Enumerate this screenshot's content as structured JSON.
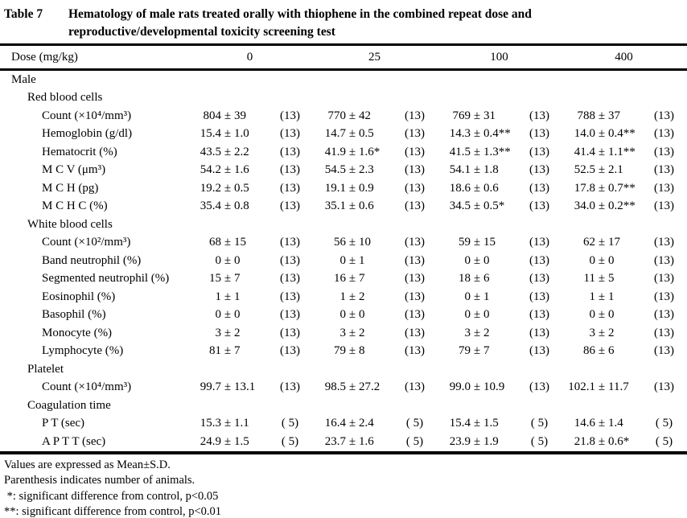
{
  "title": {
    "label": "Table 7",
    "line1": "Hematology of male rats treated orally with thiophene in the combined repeat dose and",
    "line2": "reproductive/developmental toxicity screening test"
  },
  "table": {
    "dose_label": "Dose (mg/kg)",
    "doses": [
      "0",
      "25",
      "100",
      "400"
    ],
    "pm": "±",
    "rows": [
      {
        "kind": "section",
        "level": 0,
        "label": "Male"
      },
      {
        "kind": "section",
        "level": 1,
        "label": "Red blood cells"
      },
      {
        "kind": "data",
        "level": 2,
        "label": "Count (×10⁴/mm³)",
        "values": [
          [
            "804",
            "39",
            "(13)"
          ],
          [
            "770",
            "42",
            "(13)"
          ],
          [
            "769",
            "31",
            "(13)"
          ],
          [
            "788",
            "37",
            "(13)"
          ]
        ]
      },
      {
        "kind": "data",
        "level": 2,
        "label": "Hemoglobin (g/dl)",
        "values": [
          [
            "15.4",
            "1.0",
            "(13)"
          ],
          [
            "14.7",
            "0.5",
            "(13)"
          ],
          [
            "14.3",
            "0.4**",
            "(13)"
          ],
          [
            "14.0",
            "0.4**",
            "(13)"
          ]
        ]
      },
      {
        "kind": "data",
        "level": 2,
        "label": "Hematocrit (%)",
        "values": [
          [
            "43.5",
            "2.2",
            "(13)"
          ],
          [
            "41.9",
            "1.6*",
            "(13)"
          ],
          [
            "41.5",
            "1.3**",
            "(13)"
          ],
          [
            "41.4",
            "1.1**",
            "(13)"
          ]
        ]
      },
      {
        "kind": "data",
        "level": 2,
        "label": "M C V (μm³)",
        "values": [
          [
            "54.2",
            "1.6",
            "(13)"
          ],
          [
            "54.5",
            "2.3",
            "(13)"
          ],
          [
            "54.1",
            "1.8",
            "(13)"
          ],
          [
            "52.5",
            "2.1",
            "(13)"
          ]
        ]
      },
      {
        "kind": "data",
        "level": 2,
        "label": "M C H (pg)",
        "values": [
          [
            "19.2",
            "0.5",
            "(13)"
          ],
          [
            "19.1",
            "0.9",
            "(13)"
          ],
          [
            "18.6",
            "0.6",
            "(13)"
          ],
          [
            "17.8",
            "0.7**",
            "(13)"
          ]
        ]
      },
      {
        "kind": "data",
        "level": 2,
        "label": "M C H C (%)",
        "values": [
          [
            "35.4",
            "0.8",
            "(13)"
          ],
          [
            "35.1",
            "0.6",
            "(13)"
          ],
          [
            "34.5",
            "0.5*",
            "(13)"
          ],
          [
            "34.0",
            "0.2**",
            "(13)"
          ]
        ]
      },
      {
        "kind": "section",
        "level": 1,
        "label": "White blood cells"
      },
      {
        "kind": "data",
        "level": 2,
        "label": "Count (×10²/mm³)",
        "values": [
          [
            "68",
            "15",
            "(13)"
          ],
          [
            "56",
            "10",
            "(13)"
          ],
          [
            "59",
            "15",
            "(13)"
          ],
          [
            "62",
            "17",
            "(13)"
          ]
        ]
      },
      {
        "kind": "data",
        "level": 2,
        "label": "Band neutrophil (%)",
        "values": [
          [
            "0",
            "0",
            "(13)"
          ],
          [
            "0",
            "1",
            "(13)"
          ],
          [
            "0",
            "0",
            "(13)"
          ],
          [
            "0",
            "0",
            "(13)"
          ]
        ]
      },
      {
        "kind": "data",
        "level": 2,
        "label": "Segmented neutrophil (%)",
        "values": [
          [
            "15",
            "7",
            "(13)"
          ],
          [
            "16",
            "7",
            "(13)"
          ],
          [
            "18",
            "6",
            "(13)"
          ],
          [
            "11",
            "5",
            "(13)"
          ]
        ]
      },
      {
        "kind": "data",
        "level": 2,
        "label": "Eosinophil (%)",
        "values": [
          [
            "1",
            "1",
            "(13)"
          ],
          [
            "1",
            "2",
            "(13)"
          ],
          [
            "0",
            "1",
            "(13)"
          ],
          [
            "1",
            "1",
            "(13)"
          ]
        ]
      },
      {
        "kind": "data",
        "level": 2,
        "label": "Basophil (%)",
        "values": [
          [
            "0",
            "0",
            "(13)"
          ],
          [
            "0",
            "0",
            "(13)"
          ],
          [
            "0",
            "0",
            "(13)"
          ],
          [
            "0",
            "0",
            "(13)"
          ]
        ]
      },
      {
        "kind": "data",
        "level": 2,
        "label": "Monocyte (%)",
        "values": [
          [
            "3",
            "2",
            "(13)"
          ],
          [
            "3",
            "2",
            "(13)"
          ],
          [
            "3",
            "2",
            "(13)"
          ],
          [
            "3",
            "2",
            "(13)"
          ]
        ]
      },
      {
        "kind": "data",
        "level": 2,
        "label": "Lymphocyte (%)",
        "values": [
          [
            "81",
            "7",
            "(13)"
          ],
          [
            "79",
            "8",
            "(13)"
          ],
          [
            "79",
            "7",
            "(13)"
          ],
          [
            "86",
            "6",
            "(13)"
          ]
        ]
      },
      {
        "kind": "section",
        "level": 1,
        "label": "Platelet"
      },
      {
        "kind": "data",
        "level": 2,
        "label": "Count (×10⁴/mm³)",
        "values": [
          [
            "99.7",
            "13.1",
            "(13)"
          ],
          [
            "98.5",
            "27.2",
            "(13)"
          ],
          [
            "99.0",
            "10.9",
            "(13)"
          ],
          [
            "102.1",
            "11.7",
            "(13)"
          ]
        ]
      },
      {
        "kind": "section",
        "level": 1,
        "label": "Coagulation time"
      },
      {
        "kind": "data",
        "level": 2,
        "label": "P T (sec)",
        "values": [
          [
            "15.3",
            "1.1",
            "( 5)"
          ],
          [
            "16.4",
            "2.4",
            "( 5)"
          ],
          [
            "15.4",
            "1.5",
            "( 5)"
          ],
          [
            "14.6",
            "1.4",
            "( 5)"
          ]
        ]
      },
      {
        "kind": "data",
        "level": 2,
        "label": "A P T T (sec)",
        "values": [
          [
            "24.9",
            "1.5",
            "( 5)"
          ],
          [
            "23.7",
            "1.6",
            "( 5)"
          ],
          [
            "23.9",
            "1.9",
            "( 5)"
          ],
          [
            "21.8",
            "0.6*",
            "( 5)"
          ]
        ]
      }
    ]
  },
  "footnotes": [
    "Values are expressed as Mean±S.D.",
    "Parenthesis indicates number of animals.",
    " *: significant difference from control, p<0.05",
    "**: significant difference from control, p<0.01"
  ]
}
